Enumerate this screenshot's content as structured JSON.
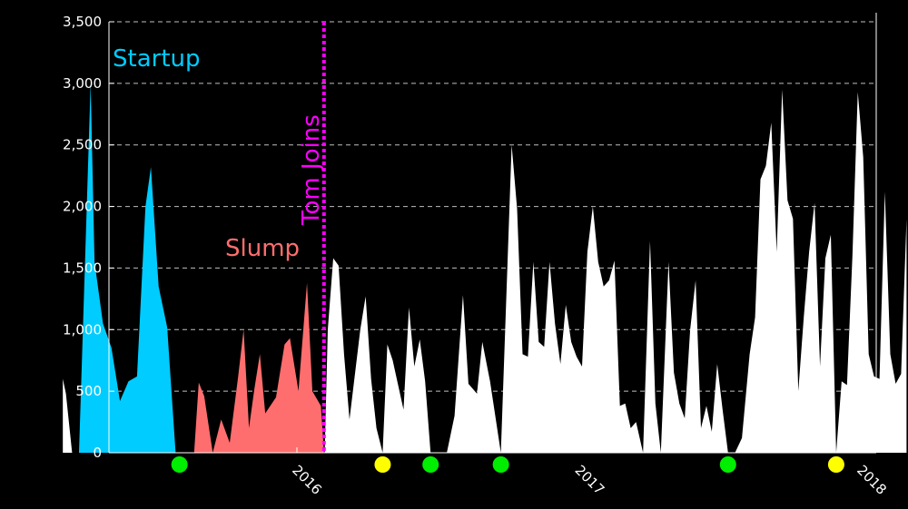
{
  "chart_data": {
    "type": "area",
    "title": "",
    "xlabel": "",
    "ylabel": "",
    "ylim": [
      0,
      3500
    ],
    "y_ticks": [
      0,
      500,
      1000,
      1500,
      2000,
      2500,
      3000,
      3500
    ],
    "y_tick_labels": [
      "0",
      "500",
      "1,000",
      "1,500",
      "2,000",
      "2,500",
      "3,000",
      "3,500"
    ],
    "x_tick_labels": [
      "2016",
      "2017",
      "2018"
    ],
    "x_tick_dates": [
      "2016-01-01",
      "2017-01-01",
      "2018-01-01"
    ],
    "x_range": [
      "2015-02-15",
      "2018-01-10"
    ],
    "grid": "horizontal dashed",
    "colors": {
      "background": "#000000",
      "startup": "#00ccff",
      "slump": "#ff6e6e",
      "main": "#ffffff",
      "marker_line": "#ff00ff",
      "green_dot": "#00ee00",
      "yellow_dot": "#ffff00"
    },
    "series": [
      {
        "key": "white_early",
        "color": "#ffffff",
        "points": [
          [
            "2015-03-04",
            600
          ],
          [
            "2015-03-08",
            480
          ],
          [
            "2015-03-16",
            0
          ]
        ]
      },
      {
        "name": "Startup",
        "color": "#00ccff",
        "points": [
          [
            "2015-03-25",
            0
          ],
          [
            "2015-03-30",
            1000
          ],
          [
            "2015-04-09",
            3000
          ],
          [
            "2015-04-14",
            1550
          ],
          [
            "2015-04-25",
            1050
          ],
          [
            "2015-05-06",
            850
          ],
          [
            "2015-05-17",
            420
          ],
          [
            "2015-05-28",
            580
          ],
          [
            "2015-06-08",
            620
          ],
          [
            "2015-06-19",
            2000
          ],
          [
            "2015-06-26",
            2320
          ],
          [
            "2015-07-06",
            1350
          ],
          [
            "2015-07-17",
            1020
          ],
          [
            "2015-07-28",
            0
          ]
        ]
      },
      {
        "name": "Slump",
        "color": "#ff6e6e",
        "points": [
          [
            "2015-08-21",
            0
          ],
          [
            "2015-08-27",
            570
          ],
          [
            "2015-09-03",
            460
          ],
          [
            "2015-09-14",
            0
          ],
          [
            "2015-09-25",
            270
          ],
          [
            "2015-10-06",
            80
          ],
          [
            "2015-10-17",
            620
          ],
          [
            "2015-10-24",
            1000
          ],
          [
            "2015-10-31",
            200
          ],
          [
            "2015-11-07",
            520
          ],
          [
            "2015-11-14",
            800
          ],
          [
            "2015-11-21",
            320
          ],
          [
            "2015-12-05",
            450
          ],
          [
            "2015-12-16",
            880
          ],
          [
            "2015-12-23",
            930
          ],
          [
            "2016-01-03",
            500
          ],
          [
            "2016-01-14",
            1380
          ],
          [
            "2016-01-21",
            500
          ],
          [
            "2016-02-01",
            380
          ],
          [
            "2016-02-05",
            0
          ]
        ]
      },
      {
        "key": "white_main",
        "color": "#ffffff",
        "points": [
          [
            "2016-02-06",
            0
          ],
          [
            "2016-02-10",
            1000
          ],
          [
            "2016-02-17",
            1580
          ],
          [
            "2016-02-24",
            1520
          ],
          [
            "2016-03-02",
            800
          ],
          [
            "2016-03-09",
            270
          ],
          [
            "2016-03-23",
            1000
          ],
          [
            "2016-03-30",
            1270
          ],
          [
            "2016-04-06",
            600
          ],
          [
            "2016-04-13",
            200
          ],
          [
            "2016-04-21",
            0
          ],
          [
            "2016-04-27",
            880
          ],
          [
            "2016-05-04",
            750
          ],
          [
            "2016-05-18",
            350
          ],
          [
            "2016-05-25",
            1180
          ],
          [
            "2016-06-01",
            700
          ],
          [
            "2016-06-08",
            920
          ],
          [
            "2016-06-15",
            580
          ],
          [
            "2016-06-22",
            0
          ],
          [
            "2016-07-13",
            0
          ],
          [
            "2016-07-23",
            300
          ],
          [
            "2016-08-03",
            1280
          ],
          [
            "2016-08-10",
            560
          ],
          [
            "2016-08-21",
            480
          ],
          [
            "2016-08-28",
            900
          ],
          [
            "2016-09-07",
            580
          ],
          [
            "2016-09-21",
            0
          ],
          [
            "2016-10-05",
            2500
          ],
          [
            "2016-10-12",
            1980
          ],
          [
            "2016-10-19",
            800
          ],
          [
            "2016-10-26",
            780
          ],
          [
            "2016-11-02",
            1550
          ],
          [
            "2016-11-09",
            900
          ],
          [
            "2016-11-16",
            860
          ],
          [
            "2016-11-23",
            1550
          ],
          [
            "2016-11-30",
            1050
          ],
          [
            "2016-12-07",
            720
          ],
          [
            "2016-12-14",
            1200
          ],
          [
            "2016-12-21",
            900
          ],
          [
            "2016-12-28",
            780
          ],
          [
            "2017-01-04",
            700
          ],
          [
            "2017-01-11",
            1630
          ],
          [
            "2017-01-18",
            2000
          ],
          [
            "2017-01-25",
            1550
          ],
          [
            "2017-02-01",
            1350
          ],
          [
            "2017-02-08",
            1400
          ],
          [
            "2017-02-15",
            1560
          ],
          [
            "2017-02-22",
            380
          ],
          [
            "2017-03-01",
            400
          ],
          [
            "2017-03-08",
            200
          ],
          [
            "2017-03-15",
            250
          ],
          [
            "2017-03-24",
            0
          ],
          [
            "2017-04-02",
            1720
          ],
          [
            "2017-04-09",
            400
          ],
          [
            "2017-04-16",
            0
          ],
          [
            "2017-04-26",
            1550
          ],
          [
            "2017-05-03",
            650
          ],
          [
            "2017-05-10",
            400
          ],
          [
            "2017-05-17",
            280
          ],
          [
            "2017-05-24",
            1000
          ],
          [
            "2017-05-31",
            1400
          ],
          [
            "2017-06-07",
            200
          ],
          [
            "2017-06-14",
            380
          ],
          [
            "2017-06-21",
            170
          ],
          [
            "2017-06-28",
            720
          ],
          [
            "2017-07-05",
            350
          ],
          [
            "2017-07-12",
            0
          ],
          [
            "2017-07-21",
            0
          ],
          [
            "2017-07-30",
            120
          ],
          [
            "2017-08-09",
            800
          ],
          [
            "2017-08-16",
            1100
          ],
          [
            "2017-08-23",
            2220
          ],
          [
            "2017-08-30",
            2330
          ],
          [
            "2017-09-06",
            2680
          ],
          [
            "2017-09-13",
            1630
          ],
          [
            "2017-09-20",
            2950
          ],
          [
            "2017-09-27",
            2050
          ],
          [
            "2017-10-04",
            1900
          ],
          [
            "2017-10-11",
            500
          ],
          [
            "2017-10-18",
            1100
          ],
          [
            "2017-10-25",
            1630
          ],
          [
            "2017-11-01",
            2030
          ],
          [
            "2017-11-08",
            700
          ],
          [
            "2017-11-15",
            1580
          ],
          [
            "2017-11-22",
            1770
          ],
          [
            "2017-11-29",
            0
          ],
          [
            "2017-12-06",
            580
          ],
          [
            "2017-12-13",
            550
          ],
          [
            "2017-12-20",
            1600
          ],
          [
            "2017-12-27",
            2930
          ],
          [
            "2018-01-03",
            2400
          ],
          [
            "2018-01-10",
            800
          ],
          [
            "2018-01-17",
            620
          ],
          [
            "2018-01-24",
            600
          ],
          [
            "2018-01-31",
            2120
          ],
          [
            "2018-02-07",
            800
          ],
          [
            "2018-02-14",
            560
          ],
          [
            "2018-02-21",
            640
          ],
          [
            "2018-02-28",
            1900
          ]
        ]
      }
    ],
    "vertical_marker": {
      "date": "2016-02-05",
      "label": "Tom Joins",
      "style": "dotted",
      "color": "#ff00ff"
    },
    "annotations": [
      {
        "text": "Startup",
        "color": "#00ccff",
        "placement": "top-left, above the cyan area"
      },
      {
        "text": "Slump",
        "color": "#ff6e6e",
        "placement": "above the salmon area"
      }
    ],
    "event_dots": [
      {
        "date": "2015-08-02",
        "color": "#00ee00"
      },
      {
        "date": "2016-04-21",
        "color": "#ffff00"
      },
      {
        "date": "2016-06-22",
        "color": "#00ee00"
      },
      {
        "date": "2016-09-21",
        "color": "#00ee00"
      },
      {
        "date": "2017-07-12",
        "color": "#00ee00"
      },
      {
        "date": "2017-11-29",
        "color": "#ffff00"
      }
    ]
  }
}
